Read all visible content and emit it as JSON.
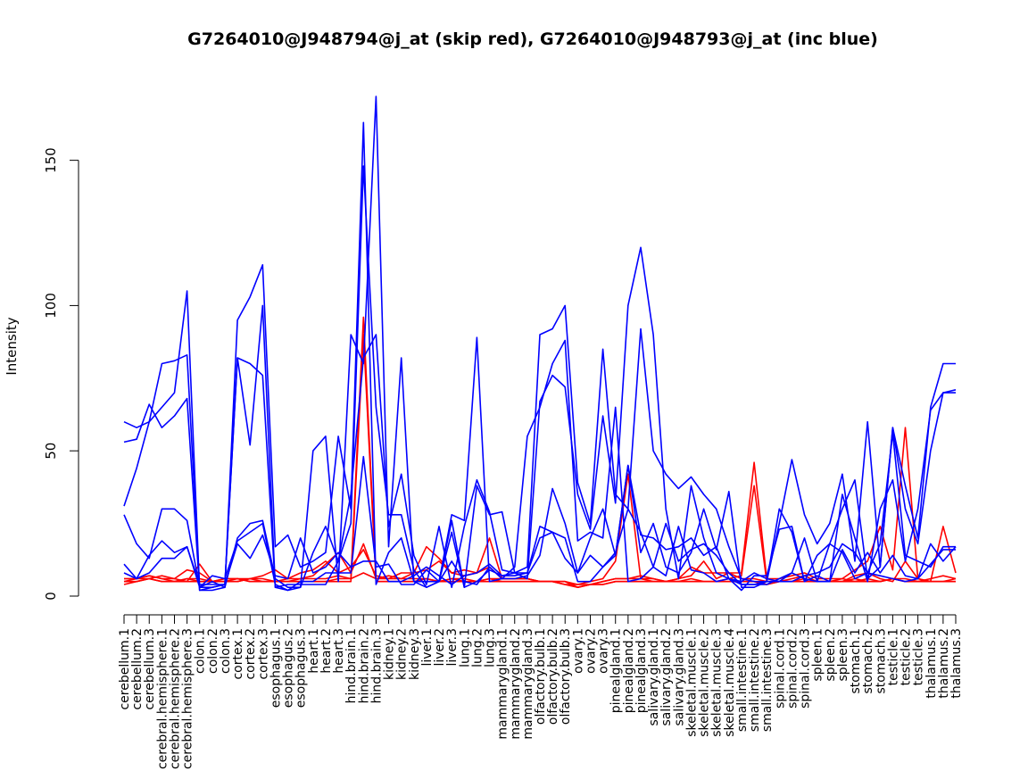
{
  "chart_data": {
    "type": "line",
    "title": "G7264010@J948794@j_at (skip red), G7264010@J948793@j_at (inc blue)",
    "xlabel": "",
    "ylabel": "Intensity",
    "ylim": [
      0,
      172
    ],
    "yticks": [
      0,
      50,
      100,
      150
    ],
    "grid": false,
    "legend": "none",
    "categories": [
      "cerebellum.1",
      "cerebellum.2",
      "cerebellum.3",
      "cerebral.hemisphere.1",
      "cerebral.hemisphere.2",
      "cerebral.hemisphere.3",
      "colon.1",
      "colon.2",
      "colon.3",
      "cortex.1",
      "cortex.2",
      "cortex.3",
      "esophagus.1",
      "esophagus.2",
      "esophagus.3",
      "heart.1",
      "heart.2",
      "heart.3",
      "hind.brain.1",
      "hind.brain.2",
      "hind.brain.3",
      "kidney.1",
      "kidney.2",
      "kidney.3",
      "liver.1",
      "liver.2",
      "liver.3",
      "lung.1",
      "lung.2",
      "lung.3",
      "mammarygland.1",
      "mammarygland.2",
      "mammarygland.3",
      "olfactory.bulb.1",
      "olfactory.bulb.2",
      "olfactory.bulb.3",
      "ovary.1",
      "ovary.2",
      "ovary.3",
      "pinealgland.1",
      "pinealgland.2",
      "pinealgland.3",
      "salivary.gland.1",
      "salivary.gland.2",
      "salivary.gland.3",
      "skeletal.muscle.1",
      "skeletal.muscle.2",
      "skeletal.muscle.3",
      "skeletal.muscle.4",
      "small.intestine.1",
      "small.intestine.2",
      "small.intestine.3",
      "spinal.cord.1",
      "spinal.cord.2",
      "spinal.cord.3",
      "spleen.1",
      "spleen.2",
      "spleen.3",
      "stomach.1",
      "stomach.2",
      "stomach.3",
      "testicle.1",
      "testicle.2",
      "testicle.3",
      "thalamus.1",
      "thalamus.2",
      "thalamus.3"
    ],
    "colors": {
      "skip": "#ff0000",
      "inc": "#0000ff"
    },
    "series": [
      {
        "group": "skip",
        "values": [
          5,
          5,
          6,
          5,
          5,
          6,
          5,
          5,
          6,
          6,
          5,
          5,
          5,
          5,
          5,
          5,
          5,
          6,
          6,
          96,
          5,
          5,
          5,
          5,
          6,
          5,
          6,
          5,
          5,
          6,
          5,
          5,
          5,
          5,
          5,
          4,
          4,
          4,
          4,
          5,
          5,
          5,
          5,
          5,
          5,
          5,
          5,
          5,
          5,
          5,
          5,
          4,
          5,
          5,
          5,
          5,
          5,
          5,
          6,
          5,
          5,
          6,
          5,
          5,
          5,
          5,
          5
        ]
      },
      {
        "group": "skip",
        "values": [
          4,
          5,
          6,
          5,
          5,
          5,
          5,
          5,
          5,
          6,
          5,
          5,
          5,
          5,
          5,
          5,
          5,
          5,
          5,
          90,
          5,
          5,
          5,
          5,
          5,
          5,
          5,
          5,
          5,
          5,
          5,
          5,
          5,
          5,
          5,
          4,
          3,
          4,
          4,
          5,
          5,
          5,
          5,
          5,
          5,
          5,
          5,
          5,
          5,
          5,
          5,
          4,
          5,
          5,
          5,
          5,
          5,
          5,
          5,
          5,
          5,
          6,
          5,
          5,
          5,
          5,
          5
        ]
      },
      {
        "group": "skip",
        "values": [
          6,
          6,
          6,
          7,
          6,
          9,
          8,
          5,
          6,
          6,
          6,
          7,
          9,
          6,
          8,
          9,
          12,
          8,
          10,
          16,
          7,
          6,
          8,
          8,
          9,
          12,
          8,
          7,
          8,
          20,
          6,
          6,
          6,
          5,
          5,
          5,
          4,
          5,
          6,
          12,
          42,
          6,
          6,
          5,
          6,
          7,
          12,
          6,
          8,
          8,
          46,
          6,
          6,
          7,
          8,
          6,
          6,
          6,
          9,
          12,
          24,
          9,
          58,
          6,
          5,
          24,
          8
        ]
      },
      {
        "group": "skip",
        "values": [
          5,
          6,
          7,
          6,
          6,
          5,
          11,
          5,
          5,
          5,
          6,
          6,
          5,
          6,
          6,
          7,
          11,
          15,
          8,
          18,
          6,
          6,
          6,
          8,
          17,
          13,
          8,
          9,
          8,
          10,
          6,
          6,
          6,
          5,
          5,
          5,
          3,
          4,
          5,
          6,
          6,
          7,
          6,
          5,
          5,
          6,
          5,
          5,
          6,
          7,
          38,
          5,
          5,
          6,
          7,
          5,
          5,
          5,
          7,
          8,
          6,
          5,
          12,
          6,
          5,
          5,
          6
        ]
      },
      {
        "group": "skip",
        "values": [
          6,
          6,
          7,
          6,
          5,
          6,
          6,
          5,
          5,
          5,
          6,
          5,
          5,
          5,
          6,
          6,
          6,
          7,
          6,
          8,
          6,
          7,
          6,
          6,
          6,
          5,
          6,
          6,
          5,
          6,
          6,
          6,
          6,
          5,
          5,
          5,
          3,
          4,
          5,
          6,
          6,
          6,
          5,
          5,
          6,
          10,
          8,
          8,
          8,
          6,
          6,
          5,
          5,
          5,
          6,
          5,
          5,
          6,
          5,
          6,
          5,
          6,
          6,
          5,
          6,
          7,
          6
        ]
      },
      {
        "group": "inc",
        "values": [
          60,
          58,
          60,
          65,
          70,
          105,
          2,
          2,
          3,
          95,
          103,
          114,
          17,
          21,
          10,
          12,
          15,
          55,
          30,
          163,
          4,
          15,
          20,
          5,
          3,
          5,
          22,
          3,
          5,
          9,
          7,
          8,
          10,
          90,
          92,
          100,
          39,
          25,
          85,
          35,
          30,
          92,
          50,
          42,
          37,
          41,
          35,
          30,
          17,
          6,
          5,
          5,
          25,
          47,
          28,
          18,
          25,
          42,
          12,
          60,
          10,
          58,
          38,
          20,
          65,
          80,
          80
        ]
      },
      {
        "group": "inc",
        "values": [
          53,
          54,
          66,
          58,
          62,
          68,
          2,
          3,
          4,
          82,
          52,
          100,
          3,
          2,
          3,
          50,
          55,
          5,
          90,
          80,
          172,
          17,
          82,
          5,
          5,
          5,
          28,
          26,
          89,
          5,
          6,
          10,
          55,
          65,
          80,
          88,
          19,
          22,
          20,
          65,
          5,
          6,
          10,
          25,
          12,
          16,
          18,
          14,
          8,
          4,
          4,
          5,
          5,
          8,
          20,
          5,
          5,
          35,
          20,
          5,
          30,
          40,
          12,
          30,
          64,
          70,
          71
        ]
      },
      {
        "group": "inc",
        "values": [
          31,
          44,
          60,
          80,
          81,
          83,
          3,
          3,
          4,
          82,
          80,
          76,
          3,
          4,
          4,
          4,
          4,
          12,
          25,
          148,
          65,
          28,
          28,
          9,
          3,
          5,
          26,
          3,
          38,
          28,
          29,
          8,
          6,
          67,
          76,
          72,
          35,
          23,
          62,
          32,
          100,
          120,
          90,
          30,
          6,
          38,
          20,
          8,
          6,
          4,
          4,
          4,
          6,
          8,
          6,
          5,
          18,
          30,
          40,
          6,
          10,
          58,
          30,
          18,
          50,
          70,
          70
        ]
      },
      {
        "group": "inc",
        "values": [
          28,
          18,
          13,
          30,
          30,
          26,
          3,
          5,
          3,
          20,
          25,
          26,
          6,
          3,
          3,
          15,
          24,
          12,
          35,
          82,
          90,
          24,
          42,
          14,
          4,
          24,
          3,
          24,
          40,
          29,
          9,
          8,
          8,
          24,
          22,
          13,
          8,
          20,
          30,
          14,
          45,
          15,
          25,
          10,
          8,
          15,
          30,
          16,
          36,
          3,
          3,
          5,
          30,
          22,
          5,
          14,
          18,
          15,
          6,
          8,
          18,
          56,
          14,
          12,
          10,
          17,
          17
        ]
      },
      {
        "group": "inc",
        "values": [
          11,
          6,
          14,
          19,
          15,
          17,
          3,
          7,
          6,
          19,
          22,
          25,
          4,
          2,
          5,
          5,
          8,
          8,
          8,
          48,
          10,
          11,
          4,
          4,
          9,
          5,
          12,
          5,
          4,
          10,
          6,
          6,
          7,
          14,
          37,
          25,
          8,
          14,
          10,
          14,
          45,
          21,
          20,
          16,
          17,
          20,
          14,
          17,
          6,
          2,
          7,
          7,
          23,
          24,
          5,
          7,
          5,
          16,
          8,
          15,
          8,
          14,
          7,
          6,
          18,
          12,
          17
        ]
      },
      {
        "group": "inc",
        "values": [
          8,
          6,
          8,
          13,
          13,
          17,
          4,
          4,
          4,
          18,
          13,
          21,
          7,
          6,
          20,
          8,
          10,
          15,
          10,
          12,
          12,
          5,
          5,
          7,
          10,
          7,
          4,
          7,
          8,
          11,
          7,
          7,
          8,
          20,
          22,
          20,
          5,
          5,
          10,
          15,
          30,
          22,
          10,
          7,
          24,
          9,
          8,
          5,
          6,
          5,
          8,
          6,
          5,
          5,
          7,
          8,
          10,
          18,
          15,
          8,
          7,
          6,
          5,
          6,
          11,
          16,
          16
        ]
      }
    ]
  }
}
